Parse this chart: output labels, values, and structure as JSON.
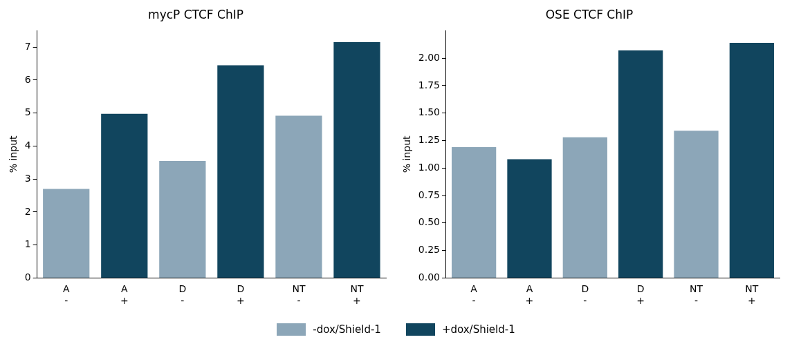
{
  "chart_data": [
    {
      "type": "bar",
      "title": "mycP CTCF ChIP",
      "ylabel": "% input",
      "categories": [
        "A\n-",
        "A\n+",
        "D\n-",
        "D\n+",
        "NT\n-",
        "NT\n+"
      ],
      "series": [
        {
          "name": "-dox/Shield-1",
          "color": "#8ca6b8",
          "values": [
            2.7,
            null,
            3.55,
            null,
            4.92,
            null
          ]
        },
        {
          "name": "+dox/Shield-1",
          "color": "#11455e",
          "values": [
            null,
            4.98,
            null,
            6.45,
            null,
            7.15
          ]
        }
      ],
      "ylim": [
        0,
        7.5
      ],
      "yticks": [
        0,
        1,
        2,
        3,
        4,
        5,
        6,
        7
      ],
      "grid": false,
      "legend": "bottom"
    },
    {
      "type": "bar",
      "title": "OSE CTCF ChIP",
      "ylabel": "% input",
      "categories": [
        "A\n-",
        "A\n+",
        "D\n-",
        "D\n+",
        "NT\n-",
        "NT\n+"
      ],
      "series": [
        {
          "name": "-dox/Shield-1",
          "color": "#8ca6b8",
          "values": [
            1.19,
            null,
            1.28,
            null,
            1.34,
            null
          ]
        },
        {
          "name": "+dox/Shield-1",
          "color": "#11455e",
          "values": [
            null,
            1.08,
            null,
            2.07,
            null,
            2.14
          ]
        }
      ],
      "ylim": [
        0,
        2.25
      ],
      "yticks": [
        {
          "value": 0,
          "label": "0.00"
        },
        {
          "value": 0.25,
          "label": "0.25"
        },
        {
          "value": 0.5,
          "label": "0.50"
        },
        {
          "value": 0.75,
          "label": "0.75"
        },
        {
          "value": 1,
          "label": "1.00"
        },
        {
          "value": 1.25,
          "label": "1.25"
        },
        {
          "value": 1.5,
          "label": "1.50"
        },
        {
          "value": 1.75,
          "label": "1.75"
        },
        {
          "value": 2,
          "label": "2.00"
        }
      ],
      "grid": false,
      "legend": "bottom"
    }
  ]
}
